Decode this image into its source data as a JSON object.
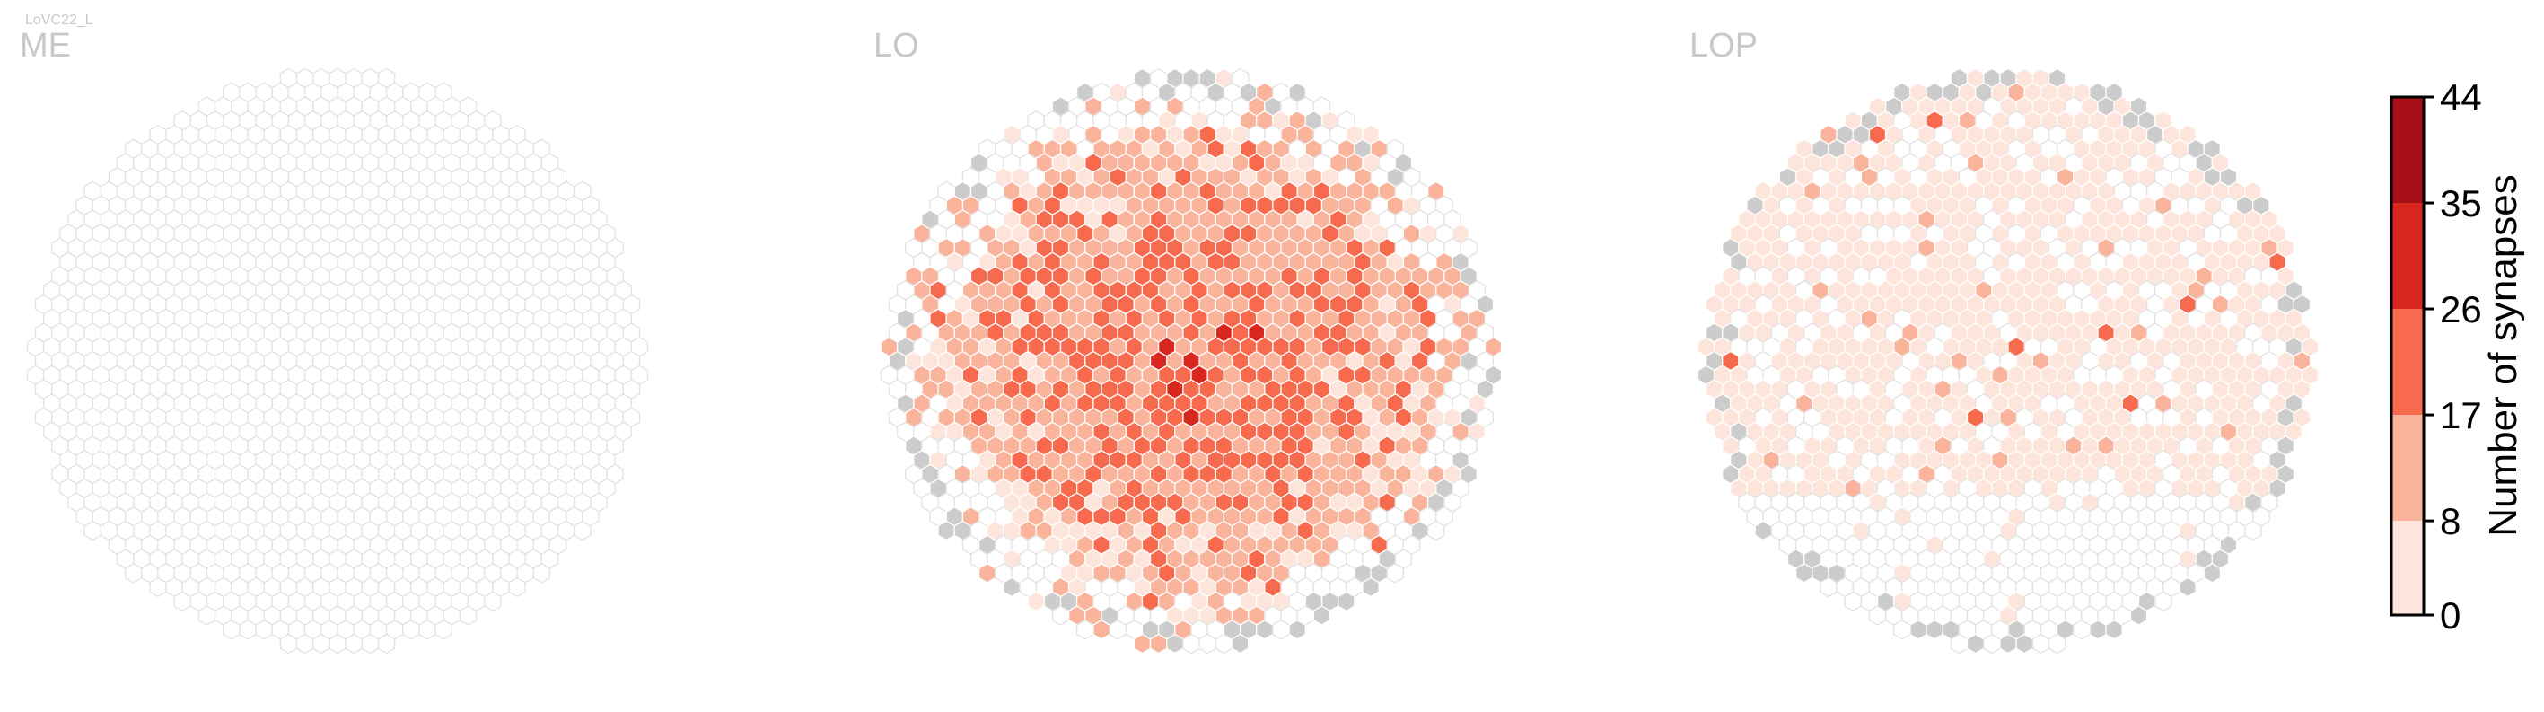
{
  "cell_type": "LoVC22_L",
  "colors": {
    "empty_fill": "#ffffff",
    "empty_stroke": "#e2e2e2",
    "cell_stroke": "#ffffff",
    "no_data": "#cccccc",
    "label": "#c8c8c8",
    "bins": [
      "#fde5dc",
      "#fbb49c",
      "#f76a4d",
      "#d8271f",
      "#a50f15"
    ]
  },
  "chart_data": {
    "type": "heatmap",
    "panels": [
      {
        "label": "ME",
        "typical_value": 0,
        "shown": false
      },
      {
        "label": "LO",
        "typical_value": 14,
        "shown": true
      },
      {
        "label": "LOP",
        "typical_value": 2,
        "shown": true
      }
    ],
    "colorbar": {
      "label": "Number of synapses",
      "range": [
        0,
        44
      ],
      "ticks": [
        0,
        8,
        17,
        26,
        35,
        44
      ],
      "bins": [
        "0-8",
        "8-17",
        "17-26",
        "26-35",
        "35-44"
      ]
    }
  }
}
